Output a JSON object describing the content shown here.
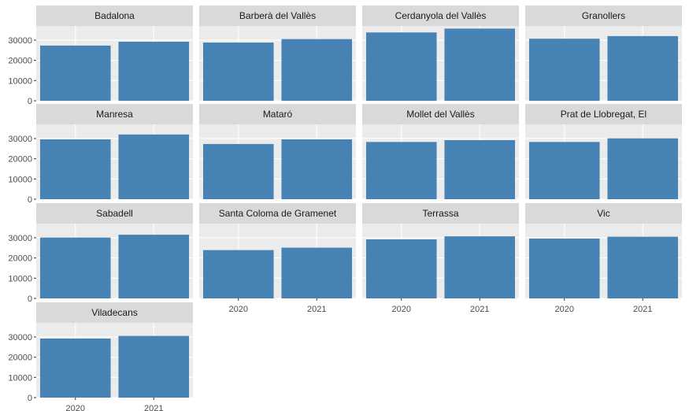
{
  "chart_data": {
    "type": "bar",
    "facet_layout": "wrap 4 columns",
    "categories": [
      "2020",
      "2021"
    ],
    "ylim": [
      0,
      37000
    ],
    "yticks": [
      0,
      10000,
      20000,
      30000
    ],
    "grid": true,
    "colors": {
      "bar": "#4682b4",
      "panel_bg": "#ebebeb",
      "strip_bg": "#d9d9d9",
      "grid_major": "#ffffff",
      "grid_minor": "#f5f5f5"
    },
    "panels": [
      {
        "name": "Badalona",
        "values": [
          27300,
          29200
        ]
      },
      {
        "name": "Barberà del Vallès",
        "values": [
          28800,
          30500
        ]
      },
      {
        "name": "Cerdanyola del Vallès",
        "values": [
          33800,
          35700
        ]
      },
      {
        "name": "Granollers",
        "values": [
          30700,
          32000
        ]
      },
      {
        "name": "Manresa",
        "values": [
          29600,
          32000
        ]
      },
      {
        "name": "Mataró",
        "values": [
          27300,
          29600
        ]
      },
      {
        "name": "Mollet del Vallès",
        "values": [
          28300,
          29200
        ]
      },
      {
        "name": "Prat de Llobregat, El",
        "values": [
          28300,
          30100
        ]
      },
      {
        "name": "Sabadell",
        "values": [
          30100,
          31500
        ]
      },
      {
        "name": "Santa Coloma de Gramenet",
        "values": [
          23900,
          25100
        ]
      },
      {
        "name": "Terrassa",
        "values": [
          29200,
          30700
        ]
      },
      {
        "name": "Vic",
        "values": [
          29600,
          30500
        ]
      },
      {
        "name": "Viladecans",
        "values": [
          29200,
          30500
        ]
      }
    ]
  }
}
